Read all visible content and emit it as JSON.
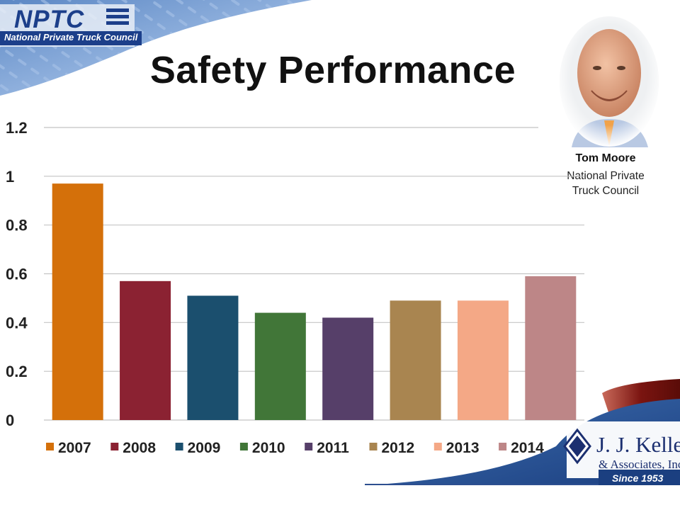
{
  "header": {
    "logo_text": "NPTC",
    "logo_subtitle": "National Private Truck Council",
    "title": "Safety Performance"
  },
  "speaker": {
    "name": "Tom Moore",
    "org_line1": "National Private",
    "org_line2": "Truck Council"
  },
  "sponsor": {
    "name": "J. J. Keller",
    "subtitle": "& Associates, Inc.",
    "since": "Since 1953"
  },
  "colors": {
    "nptc_blue": "#1c3f8a",
    "jjk_blue": "#1b2f70",
    "jjk_red": "#7a1410"
  },
  "chart_data": {
    "type": "bar",
    "title": "",
    "xlabel": "",
    "ylabel": "",
    "ylim": [
      0,
      1.2
    ],
    "yticks": [
      "0",
      "0.2",
      "0.4",
      "0.6",
      "0.8",
      "1",
      "1.2"
    ],
    "grid": true,
    "legend_position": "bottom",
    "series": [
      {
        "name": "2007",
        "value": 0.97,
        "color": "#d4700a"
      },
      {
        "name": "2008",
        "value": 0.57,
        "color": "#8b2232"
      },
      {
        "name": "2009",
        "value": 0.51,
        "color": "#1b4f6e"
      },
      {
        "name": "2010",
        "value": 0.44,
        "color": "#417638"
      },
      {
        "name": "2011",
        "value": 0.42,
        "color": "#563f69"
      },
      {
        "name": "2012",
        "value": 0.49,
        "color": "#a98550"
      },
      {
        "name": "2013",
        "value": 0.49,
        "color": "#f4a886"
      },
      {
        "name": "2014",
        "value": 0.59,
        "color": "#bd8687"
      }
    ]
  }
}
